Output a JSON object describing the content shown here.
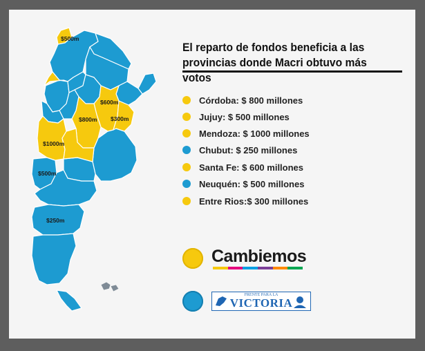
{
  "title": {
    "line1": "El reparto de fondos beneficia a las",
    "line2": "provincias donde Macri obtuvo más votos"
  },
  "colors": {
    "cambiemos": "#f6c90e",
    "fpv": "#1d9bd1",
    "background": "#5e5e5e",
    "card": "#f5f5f5",
    "map_border": "#ffffff"
  },
  "legend": [
    {
      "text": "Córdoba: $ 800 millones",
      "color": "yellow"
    },
    {
      "text": "Jujuy: $ 500 millones",
      "color": "yellow"
    },
    {
      "text": "Mendoza: $ 1000 millones",
      "color": "yellow"
    },
    {
      "text": "Chubut: $ 250 millones",
      "color": "blue"
    },
    {
      "text": "Santa Fe: $ 600 millones",
      "color": "yellow"
    },
    {
      "text": "Neuquén: $ 500 millones",
      "color": "blue"
    },
    {
      "text": " Entre Rios:$ 300 millones",
      "color": "yellow"
    }
  ],
  "map_labels": {
    "jujuy": "$500m",
    "santafe": "$600m",
    "cordoba": "$800m",
    "entrerios": "$300m",
    "mendoza": "$1000m",
    "neuquen": "$500m",
    "chubut": "$250m"
  },
  "parties": {
    "cambiemos": {
      "name": "Cambiemos",
      "dot": "yellow"
    },
    "fpv": {
      "small": "FRENTE PARA LA",
      "name": "VICTORIA",
      "dot": "blue"
    }
  }
}
